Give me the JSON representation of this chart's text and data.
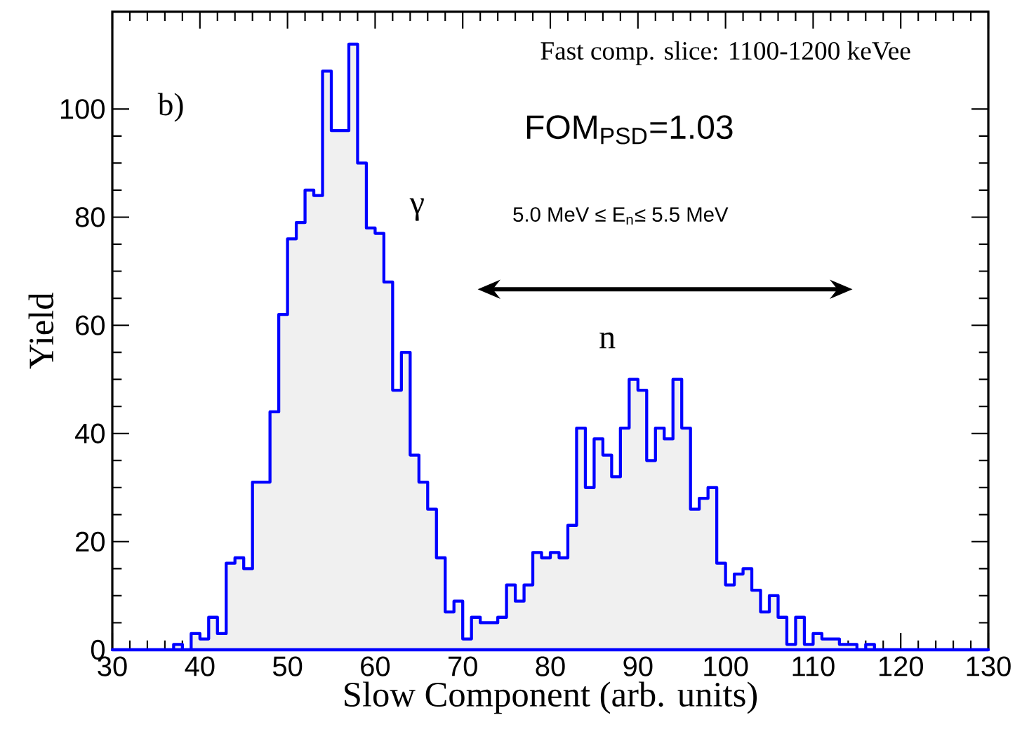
{
  "chart_data": {
    "type": "histogram",
    "xlabel": "Slow Component (arb. units)",
    "ylabel": "Yield",
    "annotations": [
      "b)",
      "Fast comp. slice: 1100-1200 keVee",
      "FOM$_{PSD}$=1.03",
      "5.0 MeV ≤ E$_{n}$≤ 5.5 MeV",
      "γ",
      "n"
    ],
    "bins": [
      30,
      31,
      32,
      33,
      34,
      35,
      36,
      37,
      38,
      39,
      40,
      41,
      42,
      43,
      44,
      45,
      46,
      47,
      48,
      49,
      50,
      51,
      52,
      53,
      54,
      55,
      56,
      57,
      58,
      59,
      60,
      61,
      62,
      63,
      64,
      65,
      66,
      67,
      68,
      69,
      70,
      71,
      72,
      73,
      74,
      75,
      76,
      77,
      78,
      79,
      80,
      81,
      82,
      83,
      84,
      85,
      86,
      87,
      88,
      89,
      90,
      91,
      92,
      93,
      94,
      95,
      96,
      97,
      98,
      99,
      100,
      101,
      102,
      103,
      104,
      105,
      106,
      107,
      108,
      109,
      110,
      111,
      112,
      113,
      114,
      115,
      116,
      117,
      118,
      119,
      120,
      121,
      122,
      123,
      124,
      125,
      126,
      127,
      128,
      129,
      130
    ],
    "values": [
      0,
      0,
      0,
      0,
      0,
      0,
      0,
      1,
      0,
      3,
      2,
      6,
      3,
      16,
      17,
      15,
      31,
      31,
      44,
      62,
      76,
      79,
      85,
      84,
      107,
      96,
      96,
      112,
      90,
      78,
      77,
      68,
      48,
      55,
      36,
      31,
      26,
      17,
      7,
      9,
      2,
      6,
      5,
      5,
      6,
      12,
      9,
      12,
      18,
      17,
      18,
      17,
      23,
      41,
      30,
      39,
      36,
      32,
      41,
      50,
      48,
      35,
      41,
      39,
      50,
      41,
      26,
      28,
      30,
      16,
      12,
      14,
      15,
      11,
      7,
      10,
      6,
      1,
      6,
      1,
      3,
      2,
      2,
      1,
      1,
      0,
      1,
      0,
      0,
      0,
      0,
      0,
      0,
      0,
      0,
      0,
      0,
      0,
      0,
      0
    ],
    "color": "#0000ff",
    "xlim": [
      30,
      130
    ],
    "ylim": [
      0,
      118
    ],
    "xticks": [
      30,
      40,
      50,
      60,
      70,
      80,
      90,
      100,
      110,
      120,
      130
    ],
    "yticks": [
      0,
      20,
      40,
      60,
      80,
      100
    ]
  }
}
